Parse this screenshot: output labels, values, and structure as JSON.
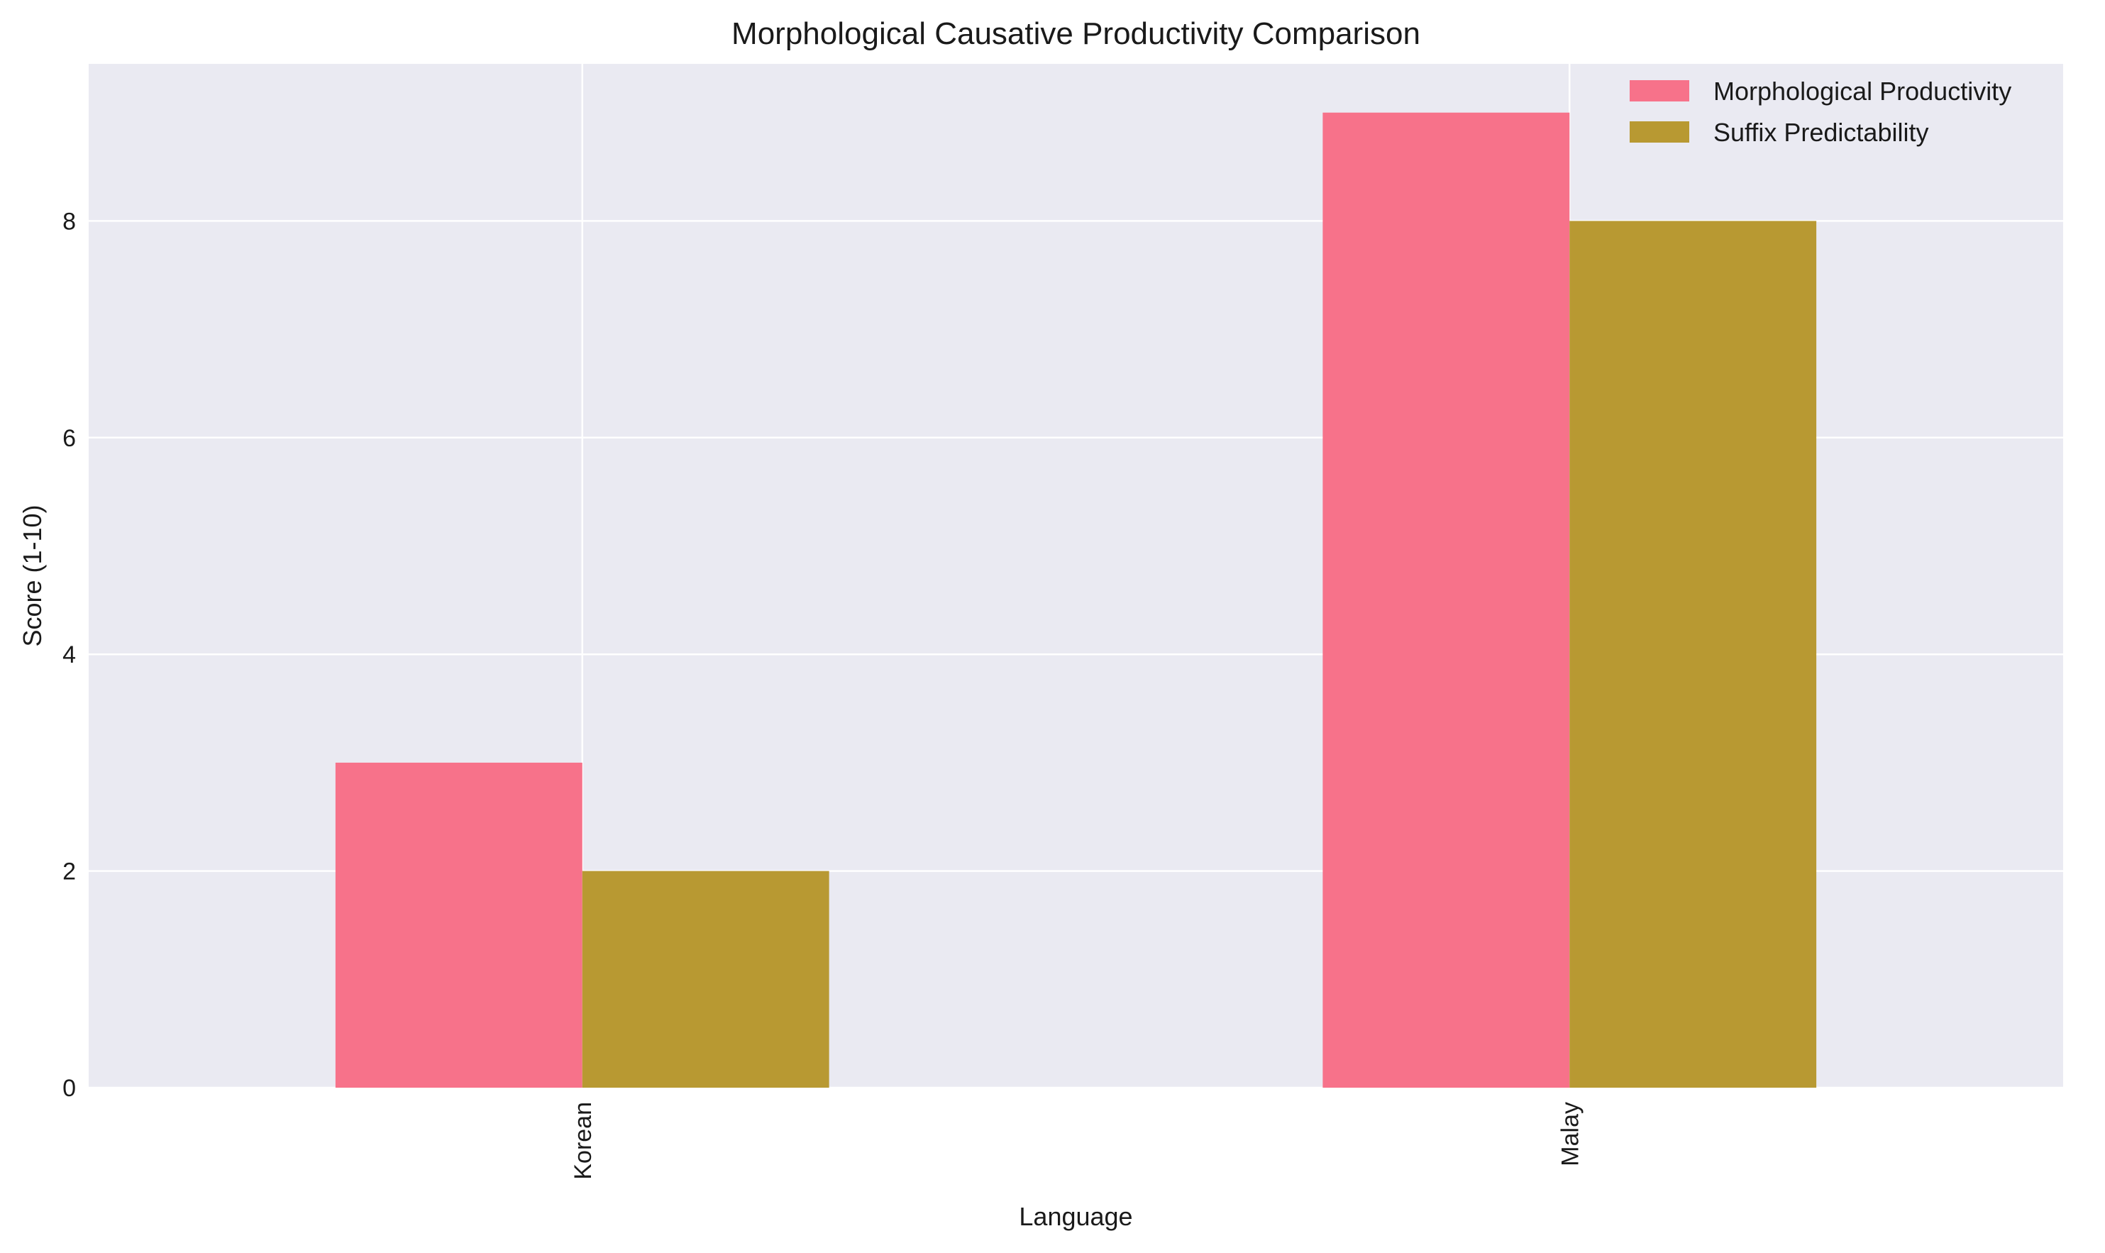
{
  "chart_data": {
    "type": "bar",
    "title": "Morphological Causative Productivity Comparison",
    "xlabel": "Language",
    "ylabel": "Score (1-10)",
    "categories": [
      "Korean",
      "Malay"
    ],
    "series": [
      {
        "name": "Morphological Productivity",
        "values": [
          3,
          9
        ],
        "color": "#f7728a"
      },
      {
        "name": "Suffix Predictability",
        "values": [
          2,
          8
        ],
        "color": "#b89932"
      }
    ],
    "ylim": [
      0,
      9.45
    ],
    "yticks": [
      0,
      2,
      4,
      6,
      8
    ],
    "grid": true,
    "legend_position": "top-right",
    "background_color": "#eaeaf2",
    "grid_color": "#ffffff"
  }
}
